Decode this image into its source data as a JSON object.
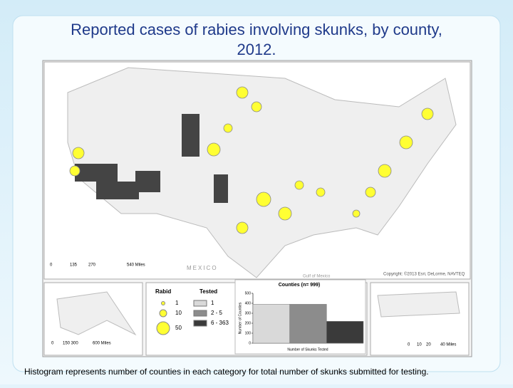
{
  "title": "Reported cases of rabies involving  skunks, by county, 2012.",
  "caption": "Histogram represents number of counties in each category for total number of skunks submitted for testing.",
  "map": {
    "scale_labels": [
      "0",
      "135",
      "270",
      "540 Miles"
    ],
    "copyright": "Copyright: ©2013 Esri, DeLorme, NAVTEQ",
    "country_label": "MEXICO",
    "gulf_label": "Gulf of Mexico"
  },
  "alaska": {
    "scale_labels": [
      "0",
      "150 300",
      "600 Miles"
    ]
  },
  "puerto_rico": {
    "scale_labels": [
      "0",
      "10",
      "20",
      "40 Miles"
    ]
  },
  "legend": {
    "rabid_title": "Rabid",
    "rabid": [
      "1",
      "10",
      "50"
    ],
    "tested_title": "Tested",
    "tested": [
      "1",
      "2 - 5",
      "6 - 363"
    ],
    "tested_colors": [
      "#d9d9d9",
      "#8c8c8c",
      "#3a3a3a"
    ]
  },
  "chart_data": {
    "type": "bar",
    "title": "Counties (n= 999)",
    "x_label": "Number of Skunks Tested",
    "y_label": "Number of Counties",
    "categories": [
      null,
      null,
      null
    ],
    "values": [
      390,
      390,
      219
    ],
    "colors": [
      "#d9d9d9",
      "#8c8c8c",
      "#3a3a3a"
    ],
    "ylim": [
      0,
      500
    ],
    "yticks": [
      0,
      100,
      200,
      300,
      400,
      500
    ]
  }
}
